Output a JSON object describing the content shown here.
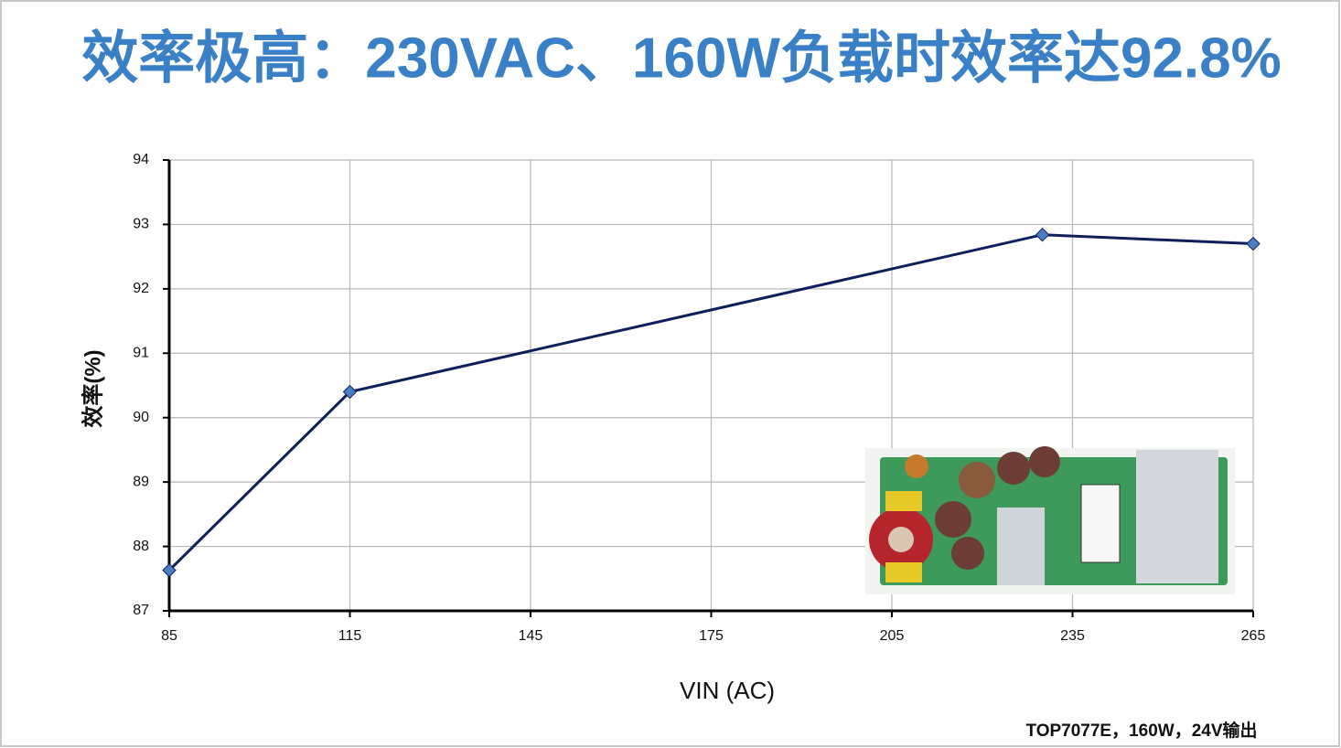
{
  "chart_data": {
    "type": "line",
    "title": "效率极高：230VAC、160W负载时效率达92.8%",
    "x_label": "VIN (AC)",
    "y_label": "效率(%)",
    "note": "TOP7077E，160W，24V输出",
    "x": [
      85,
      115,
      230,
      265
    ],
    "values": [
      87.63,
      90.4,
      92.84,
      92.7
    ],
    "color": "#0e1f5b",
    "marker_color": "#4a7ec2",
    "xlim": [
      85,
      265
    ],
    "xticks": [
      85,
      115,
      145,
      175,
      205,
      235,
      265
    ],
    "ylim": [
      87,
      94
    ],
    "yticks": [
      87,
      88,
      89,
      90,
      91,
      92,
      93,
      94
    ],
    "grid": true
  }
}
